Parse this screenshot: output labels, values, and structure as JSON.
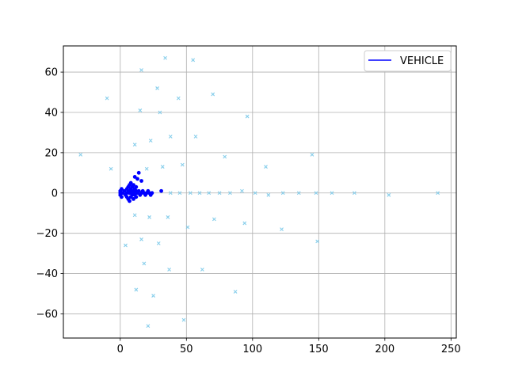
{
  "chart_data": {
    "type": "scatter",
    "title": "",
    "xlabel": "",
    "ylabel": "",
    "xlim": [
      -43,
      254
    ],
    "ylim": [
      -72,
      73
    ],
    "xticks": [
      0,
      50,
      100,
      150,
      200,
      250
    ],
    "yticks": [
      -60,
      -40,
      -20,
      0,
      20,
      40,
      60
    ],
    "grid": true,
    "legend": {
      "placement": "top-right",
      "entries": [
        {
          "label": "VEHICLE",
          "color": "#0000ff",
          "marker": "line"
        }
      ]
    },
    "series": [
      {
        "name": "VEHICLE",
        "color": "#0000ff",
        "marker": "dot",
        "points": [
          [
            0,
            0
          ],
          [
            0,
            1
          ],
          [
            0,
            -1
          ],
          [
            1,
            2
          ],
          [
            1,
            -2
          ],
          [
            2,
            0
          ],
          [
            3,
            1
          ],
          [
            4,
            -1
          ],
          [
            5,
            0
          ],
          [
            5,
            2
          ],
          [
            5,
            -2
          ],
          [
            6,
            1
          ],
          [
            6,
            3
          ],
          [
            6,
            -3
          ],
          [
            7,
            0
          ],
          [
            7,
            4
          ],
          [
            7,
            -4
          ],
          [
            8,
            1
          ],
          [
            8,
            2
          ],
          [
            8,
            -2
          ],
          [
            8,
            5
          ],
          [
            9,
            0
          ],
          [
            9,
            3
          ],
          [
            9,
            -1
          ],
          [
            10,
            1
          ],
          [
            10,
            4
          ],
          [
            10,
            -3
          ],
          [
            11,
            0
          ],
          [
            11,
            2
          ],
          [
            11,
            8
          ],
          [
            11,
            -1
          ],
          [
            12,
            1
          ],
          [
            12,
            3
          ],
          [
            12,
            -2
          ],
          [
            13,
            7
          ],
          [
            13,
            0
          ],
          [
            14,
            10
          ],
          [
            14,
            1
          ],
          [
            15,
            -1
          ],
          [
            16,
            6
          ],
          [
            16,
            0
          ],
          [
            17,
            1
          ],
          [
            18,
            0
          ],
          [
            19,
            -1
          ],
          [
            20,
            0
          ],
          [
            21,
            1
          ],
          [
            22,
            0
          ],
          [
            23,
            -1
          ],
          [
            24,
            0
          ],
          [
            31,
            1
          ]
        ]
      },
      {
        "name": "",
        "color": "#87ceeb",
        "marker": "x",
        "points": [
          [
            -30,
            19
          ],
          [
            -10,
            47
          ],
          [
            -7,
            12
          ],
          [
            4,
            -26
          ],
          [
            11,
            -11
          ],
          [
            11,
            24
          ],
          [
            12,
            -48
          ],
          [
            15,
            41
          ],
          [
            16,
            -23
          ],
          [
            16,
            61
          ],
          [
            17,
            0
          ],
          [
            18,
            -35
          ],
          [
            20,
            12
          ],
          [
            21,
            -66
          ],
          [
            22,
            -12
          ],
          [
            23,
            26
          ],
          [
            25,
            -51
          ],
          [
            28,
            52
          ],
          [
            29,
            -25
          ],
          [
            30,
            40
          ],
          [
            32,
            13
          ],
          [
            34,
            67
          ],
          [
            36,
            -12
          ],
          [
            37,
            -38
          ],
          [
            38,
            28
          ],
          [
            38,
            0
          ],
          [
            44,
            47
          ],
          [
            45,
            0
          ],
          [
            47,
            14
          ],
          [
            48,
            -63
          ],
          [
            51,
            -17
          ],
          [
            53,
            0
          ],
          [
            55,
            66
          ],
          [
            57,
            28
          ],
          [
            60,
            0
          ],
          [
            62,
            -38
          ],
          [
            67,
            0
          ],
          [
            70,
            49
          ],
          [
            71,
            -13
          ],
          [
            75,
            0
          ],
          [
            79,
            18
          ],
          [
            83,
            0
          ],
          [
            87,
            -49
          ],
          [
            92,
            1
          ],
          [
            94,
            -15
          ],
          [
            96,
            38
          ],
          [
            102,
            0
          ],
          [
            110,
            13
          ],
          [
            112,
            -1
          ],
          [
            122,
            -18
          ],
          [
            123,
            0
          ],
          [
            135,
            0
          ],
          [
            145,
            19
          ],
          [
            148,
            0
          ],
          [
            149,
            -24
          ],
          [
            160,
            0
          ],
          [
            177,
            0
          ],
          [
            203,
            -1
          ],
          [
            240,
            0
          ]
        ]
      }
    ]
  }
}
